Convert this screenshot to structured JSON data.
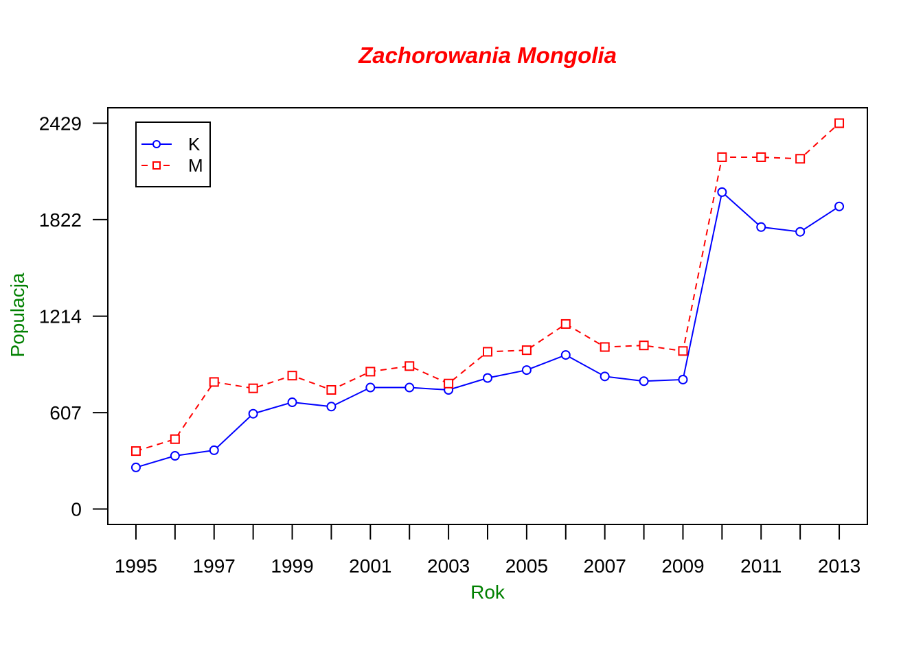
{
  "chart_data": {
    "type": "line",
    "title": "Zachorowania Mongolia",
    "xlabel": "Rok",
    "ylabel": "Populacja",
    "x": [
      1995,
      1996,
      1997,
      1998,
      1999,
      2000,
      2001,
      2002,
      2003,
      2004,
      2005,
      2006,
      2007,
      2008,
      2009,
      2010,
      2011,
      2012,
      2013
    ],
    "x_tick_labels": [
      "1995",
      "1997",
      "1999",
      "2001",
      "2003",
      "2005",
      "2007",
      "2009",
      "2011",
      "2013"
    ],
    "y_ticks": [
      0,
      607,
      1214,
      1822,
      2429
    ],
    "y_tick_labels": [
      "0",
      "607",
      "1214",
      "1822",
      "2429"
    ],
    "xlim": [
      1994.28,
      2013.72
    ],
    "ylim": [
      -97,
      2526
    ],
    "grid": false,
    "legend_position": "top-left",
    "series": [
      {
        "name": "K",
        "color": "#0000ff",
        "line_style": "solid",
        "marker": "circle",
        "values": [
          262,
          335,
          370,
          600,
          672,
          645,
          765,
          765,
          750,
          825,
          875,
          970,
          835,
          805,
          815,
          1995,
          1775,
          1745,
          1905
        ]
      },
      {
        "name": "M",
        "color": "#ff0000",
        "line_style": "dashed",
        "marker": "square",
        "values": [
          365,
          440,
          800,
          760,
          840,
          750,
          865,
          900,
          790,
          990,
          1000,
          1165,
          1020,
          1030,
          995,
          2215,
          2215,
          2205,
          2429
        ]
      }
    ],
    "title_color": "#ff0000",
    "axis_label_color": "#008000"
  }
}
